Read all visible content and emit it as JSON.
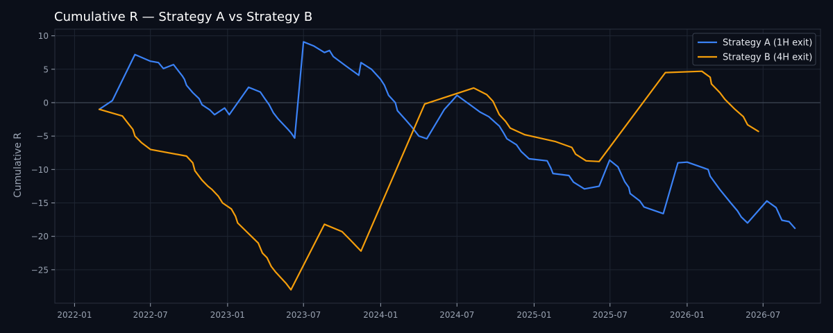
{
  "chart_data": {
    "type": "line",
    "title": "Cumulative R — Strategy A vs Strategy B",
    "xlabel": "",
    "ylabel": "Cumulative R",
    "x_axis_type": "date",
    "xlim": [
      "2021-11-15",
      "2026-11-15"
    ],
    "ylim": [
      -30,
      11
    ],
    "x_ticks": [
      "2022-01-01",
      "2022-07-01",
      "2023-01-01",
      "2023-07-01",
      "2024-01-01",
      "2024-07-01",
      "2025-01-01",
      "2025-07-01",
      "2026-01-01",
      "2026-07-01"
    ],
    "x_tick_labels": [
      "2022-01",
      "2022-07",
      "2023-01",
      "2023-07",
      "2024-01",
      "2024-07",
      "2025-01",
      "2025-07",
      "2026-01",
      "2026-07"
    ],
    "y_ticks": [
      10,
      5,
      0,
      -5,
      -10,
      -15,
      -20,
      -25
    ],
    "y_tick_labels": [
      "10",
      "5",
      "0",
      "−5",
      "−10",
      "−15",
      "−20",
      "−25"
    ],
    "zero_line": true,
    "grid": true,
    "legend_position": "top-right",
    "series": [
      {
        "name": "Strategy A (1H exit)",
        "color": "#3b82f6",
        "points": [
          [
            "2022-03-01",
            -1.0
          ],
          [
            "2022-04-01",
            0.3
          ],
          [
            "2022-05-25",
            7.2
          ],
          [
            "2022-07-01",
            6.2
          ],
          [
            "2022-07-20",
            6.0
          ],
          [
            "2022-08-01",
            5.1
          ],
          [
            "2022-08-25",
            5.7
          ],
          [
            "2022-09-15",
            4.0
          ],
          [
            "2022-09-20",
            3.5
          ],
          [
            "2022-09-25",
            2.6
          ],
          [
            "2022-10-10",
            1.5
          ],
          [
            "2022-10-25",
            0.6
          ],
          [
            "2022-11-01",
            -0.3
          ],
          [
            "2022-11-20",
            -1.1
          ],
          [
            "2022-12-01",
            -1.8
          ],
          [
            "2022-12-25",
            -0.8
          ],
          [
            "2023-01-05",
            -1.8
          ],
          [
            "2023-02-20",
            2.3
          ],
          [
            "2023-03-20",
            1.6
          ],
          [
            "2023-04-01",
            0.5
          ],
          [
            "2023-04-10",
            -0.3
          ],
          [
            "2023-04-20",
            -1.5
          ],
          [
            "2023-05-01",
            -2.4
          ],
          [
            "2023-05-25",
            -4.0
          ],
          [
            "2023-06-01",
            -4.5
          ],
          [
            "2023-06-10",
            -5.3
          ],
          [
            "2023-07-01",
            9.1
          ],
          [
            "2023-07-25",
            8.5
          ],
          [
            "2023-08-20",
            7.5
          ],
          [
            "2023-09-01",
            7.8
          ],
          [
            "2023-09-10",
            6.9
          ],
          [
            "2023-10-10",
            5.5
          ],
          [
            "2023-11-10",
            4.1
          ],
          [
            "2023-11-15",
            6.0
          ],
          [
            "2023-12-10",
            5.0
          ],
          [
            "2024-01-01",
            3.5
          ],
          [
            "2024-01-10",
            2.6
          ],
          [
            "2024-01-20",
            1.1
          ],
          [
            "2024-02-05",
            0.0
          ],
          [
            "2024-02-10",
            -1.2
          ],
          [
            "2024-03-01",
            -2.6
          ],
          [
            "2024-03-15",
            -3.6
          ],
          [
            "2024-04-01",
            -5.0
          ],
          [
            "2024-04-20",
            -5.4
          ],
          [
            "2024-06-01",
            -1.0
          ],
          [
            "2024-06-20",
            0.3
          ],
          [
            "2024-07-01",
            1.1
          ],
          [
            "2024-08-01",
            -0.3
          ],
          [
            "2024-08-25",
            -1.4
          ],
          [
            "2024-09-15",
            -2.1
          ],
          [
            "2024-10-01",
            -3.0
          ],
          [
            "2024-10-10",
            -3.5
          ],
          [
            "2024-10-20",
            -4.5
          ],
          [
            "2024-10-28",
            -5.4
          ],
          [
            "2024-11-20",
            -6.3
          ],
          [
            "2024-12-01",
            -7.3
          ],
          [
            "2024-12-20",
            -8.4
          ],
          [
            "2025-02-01",
            -8.7
          ],
          [
            "2025-02-10",
            -9.8
          ],
          [
            "2025-02-15",
            -10.6
          ],
          [
            "2025-03-25",
            -10.9
          ],
          [
            "2025-04-05",
            -11.9
          ],
          [
            "2025-05-01",
            -12.9
          ],
          [
            "2025-06-05",
            -12.5
          ],
          [
            "2025-06-30",
            -8.6
          ],
          [
            "2025-07-20",
            -9.6
          ],
          [
            "2025-08-05",
            -11.8
          ],
          [
            "2025-08-15",
            -12.7
          ],
          [
            "2025-08-18",
            -13.6
          ],
          [
            "2025-09-10",
            -14.7
          ],
          [
            "2025-09-20",
            -15.6
          ],
          [
            "2025-11-05",
            -16.6
          ],
          [
            "2025-12-10",
            -9.0
          ],
          [
            "2026-01-01",
            -8.9
          ],
          [
            "2026-02-20",
            -10.0
          ],
          [
            "2026-02-25",
            -11.0
          ],
          [
            "2026-03-20",
            -13.0
          ],
          [
            "2026-04-15",
            -15.0
          ],
          [
            "2026-05-01",
            -16.2
          ],
          [
            "2026-05-10",
            -17.1
          ],
          [
            "2026-05-25",
            -18.0
          ],
          [
            "2026-07-10",
            -14.7
          ],
          [
            "2026-08-01",
            -15.7
          ],
          [
            "2026-08-15",
            -17.6
          ],
          [
            "2026-09-01",
            -17.8
          ],
          [
            "2026-09-15",
            -18.8
          ]
        ]
      },
      {
        "name": "Strategy B (4H exit)",
        "color": "#f59e0b",
        "points": [
          [
            "2022-03-01",
            -1.0
          ],
          [
            "2022-04-25",
            -2.0
          ],
          [
            "2022-05-10",
            -3.2
          ],
          [
            "2022-05-20",
            -4.0
          ],
          [
            "2022-05-25",
            -5.0
          ],
          [
            "2022-06-10",
            -6.0
          ],
          [
            "2022-07-01",
            -7.0
          ],
          [
            "2022-09-25",
            -8.0
          ],
          [
            "2022-10-10",
            -9.0
          ],
          [
            "2022-10-15",
            -10.2
          ],
          [
            "2022-11-01",
            -11.6
          ],
          [
            "2022-11-15",
            -12.5
          ],
          [
            "2022-11-25",
            -13.0
          ],
          [
            "2022-12-10",
            -14.0
          ],
          [
            "2022-12-20",
            -15.0
          ],
          [
            "2023-01-10",
            -15.9
          ],
          [
            "2023-01-20",
            -17.0
          ],
          [
            "2023-01-25",
            -18.0
          ],
          [
            "2023-03-15",
            -21.0
          ],
          [
            "2023-03-25",
            -22.5
          ],
          [
            "2023-04-05",
            -23.2
          ],
          [
            "2023-04-15",
            -24.5
          ],
          [
            "2023-04-25",
            -25.3
          ],
          [
            "2023-05-20",
            -27.0
          ],
          [
            "2023-06-01",
            -28.0
          ],
          [
            "2023-08-20",
            -18.2
          ],
          [
            "2023-10-01",
            -19.3
          ],
          [
            "2023-10-20",
            -20.5
          ],
          [
            "2023-11-15",
            -22.2
          ],
          [
            "2024-04-15",
            -0.2
          ],
          [
            "2024-08-10",
            2.2
          ],
          [
            "2024-09-10",
            1.2
          ],
          [
            "2024-09-25",
            0.2
          ],
          [
            "2024-10-10",
            -1.8
          ],
          [
            "2024-10-25",
            -2.8
          ],
          [
            "2024-11-05",
            -3.8
          ],
          [
            "2024-12-10",
            -4.8
          ],
          [
            "2025-02-20",
            -5.8
          ],
          [
            "2025-04-01",
            -6.7
          ],
          [
            "2025-04-10",
            -7.7
          ],
          [
            "2025-05-05",
            -8.7
          ],
          [
            "2025-06-05",
            -8.8
          ],
          [
            "2025-11-10",
            4.5
          ],
          [
            "2026-02-05",
            4.7
          ],
          [
            "2026-02-25",
            3.8
          ],
          [
            "2026-02-28",
            2.8
          ],
          [
            "2026-03-20",
            1.5
          ],
          [
            "2026-04-01",
            0.5
          ],
          [
            "2026-04-25",
            -1.0
          ],
          [
            "2026-05-15",
            -2.1
          ],
          [
            "2026-05-25",
            -3.3
          ],
          [
            "2026-06-20",
            -4.3
          ]
        ]
      }
    ]
  },
  "colors": {
    "background": "#0b0f19",
    "plot_frame": "#2b3240",
    "grid": "#1f2633",
    "zero_line": "#4b5563",
    "tick_text": "#9aa3b2",
    "title_text": "#ffffff"
  }
}
